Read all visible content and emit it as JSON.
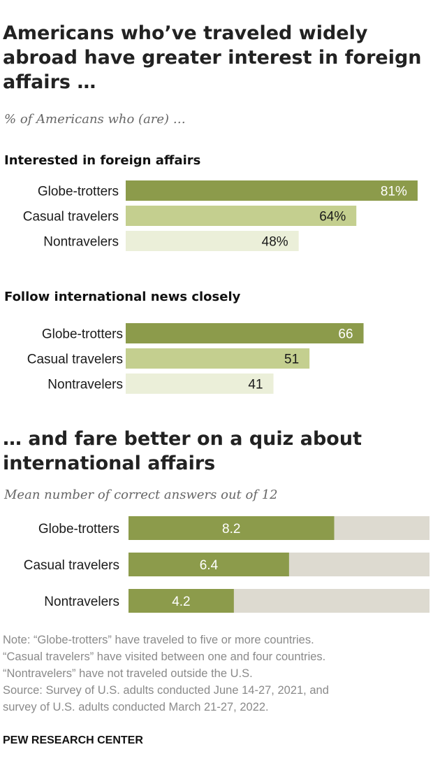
{
  "title": "Americans who’ve traveled widely abroad have greater interest in foreign affairs …",
  "subtitle": "% of Americans who (are) …",
  "title2": "… and fare better on a quiz about international affairs",
  "subtitle2": "Mean number of correct answers out of 12",
  "colors": {
    "dark": "#8c9b4b",
    "medium": "#c4cf8f",
    "light": "#ebefd9",
    "remainder": "#dddad0"
  },
  "chart_data": [
    {
      "type": "bar",
      "title": "Interested in foreign affairs",
      "categories": [
        "Globe-trotters",
        "Casual travelers",
        "Nontravelers"
      ],
      "values": [
        81,
        64,
        48
      ],
      "value_labels": [
        "81%",
        "64%",
        "48%"
      ],
      "xlim": [
        0,
        100
      ]
    },
    {
      "type": "bar",
      "title": "Follow international news closely",
      "categories": [
        "Globe-trotters",
        "Casual travelers",
        "Nontravelers"
      ],
      "values": [
        66,
        51,
        41
      ],
      "value_labels": [
        "66",
        "51",
        "41"
      ],
      "xlim": [
        0,
        100
      ]
    },
    {
      "type": "bar",
      "title": "",
      "categories": [
        "Globe-trotters",
        "Casual travelers",
        "Nontravelers"
      ],
      "values": [
        8.2,
        6.4,
        4.2
      ],
      "value_labels": [
        "8.2",
        "6.4",
        "4.2"
      ],
      "xlim": [
        0,
        12
      ]
    }
  ],
  "notes": [
    "Note: “Globe-trotters” have traveled to five or more countries.",
    "“Casual travelers” have visited between one and four countries.",
    "“Nontravelers” have not traveled outside the U.S.",
    "Source: Survey of U.S. adults conducted June 14-27, 2021, and",
    "survey of U.S. adults conducted March 21-27, 2022."
  ],
  "brand": "PEW RESEARCH CENTER"
}
